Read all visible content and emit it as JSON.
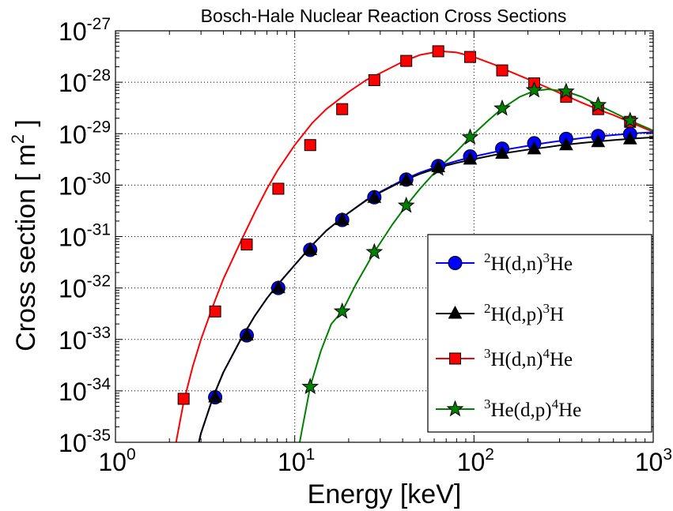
{
  "chart_data": {
    "type": "line",
    "title": "Bosch-Hale Nuclear Reaction Cross Sections",
    "xlabel": "Energy [keV]",
    "ylabel": "Cross section [ m",
    "ylabel_sup": "2",
    "ylabel_end": " ]",
    "xscale": "log",
    "yscale": "log",
    "xlim": [
      1,
      1000
    ],
    "ylim": [
      1e-35,
      1e-27
    ],
    "grid": true,
    "legend_position": "lower-right",
    "x_ticks": [
      {
        "value": 1,
        "base": "10",
        "exp": "0"
      },
      {
        "value": 10,
        "base": "10",
        "exp": "1"
      },
      {
        "value": 100,
        "base": "10",
        "exp": "2"
      },
      {
        "value": 1000,
        "base": "10",
        "exp": "3"
      }
    ],
    "y_ticks": [
      {
        "value": 1e-35,
        "base": "10",
        "exp": "-35"
      },
      {
        "value": 1e-34,
        "base": "10",
        "exp": "-34"
      },
      {
        "value": 1e-33,
        "base": "10",
        "exp": "-33"
      },
      {
        "value": 1e-32,
        "base": "10",
        "exp": "-32"
      },
      {
        "value": 1e-31,
        "base": "10",
        "exp": "-31"
      },
      {
        "value": 1e-30,
        "base": "10",
        "exp": "-30"
      },
      {
        "value": 1e-29,
        "base": "10",
        "exp": "-29"
      },
      {
        "value": 1e-28,
        "base": "10",
        "exp": "-28"
      },
      {
        "value": 1e-27,
        "base": "10",
        "exp": "-27"
      }
    ],
    "series": [
      {
        "label_parts": [
          [
            "2",
            "s"
          ],
          [
            "H(d,n)",
            "n"
          ],
          [
            "3",
            "s"
          ],
          [
            "He",
            "n"
          ]
        ],
        "color": "#0000ff",
        "marker": "circle",
        "marker_color": "#0000ff",
        "curve": [
          [
            2.5,
            1e-36
          ],
          [
            3,
            1.5e-35
          ],
          [
            3.5,
            7.5e-35
          ],
          [
            4,
            2.3e-34
          ],
          [
            5,
            1e-33
          ],
          [
            6,
            2.9e-33
          ],
          [
            7,
            6.3e-33
          ],
          [
            8,
            1.14e-32
          ],
          [
            10,
            2.8e-32
          ],
          [
            12.5,
            6.8e-32
          ],
          [
            15,
            1.3e-31
          ],
          [
            20,
            2.9e-31
          ],
          [
            25,
            5.1e-31
          ],
          [
            30,
            7.4e-31
          ],
          [
            40,
            1.25e-30
          ],
          [
            50,
            1.75e-30
          ],
          [
            65,
            2.4e-30
          ],
          [
            80,
            2.95e-30
          ],
          [
            100,
            3.6e-30
          ],
          [
            130,
            4.4e-30
          ],
          [
            150,
            4.9e-30
          ],
          [
            200,
            5.8e-30
          ],
          [
            250,
            6.6e-30
          ],
          [
            300,
            7.2e-30
          ],
          [
            400,
            8.2e-30
          ],
          [
            500,
            8.9e-30
          ],
          [
            600,
            9.4e-30
          ],
          [
            800,
            1.02e-29
          ],
          [
            1000,
            1.07e-29
          ]
        ],
        "points": [
          [
            3.6,
            7.5e-35
          ],
          [
            5.4,
            1.2e-33
          ],
          [
            8.1,
            1e-32
          ],
          [
            12.2,
            5.5e-32
          ],
          [
            18.4,
            2.1e-31
          ],
          [
            27.8,
            5.8e-31
          ],
          [
            41.9,
            1.28e-30
          ],
          [
            63.2,
            2.35e-30
          ],
          [
            95.2,
            3.6e-30
          ],
          [
            143.7,
            5.1e-30
          ],
          [
            216.7,
            6.5e-30
          ],
          [
            326.7,
            7.9e-30
          ],
          [
            492.6,
            9e-30
          ],
          [
            742.9,
            9.8e-30
          ]
        ]
      },
      {
        "label_parts": [
          [
            "2",
            "s"
          ],
          [
            "H(d,p)",
            "n"
          ],
          [
            "3",
            "s"
          ],
          [
            "H",
            "n"
          ]
        ],
        "color": "#000000",
        "marker": "triangle",
        "marker_color": "#000000",
        "curve": [
          [
            2.5,
            1e-36
          ],
          [
            3,
            1.5e-35
          ],
          [
            3.5,
            7.5e-35
          ],
          [
            4,
            2.3e-34
          ],
          [
            5,
            1e-33
          ],
          [
            6,
            2.9e-33
          ],
          [
            7,
            6.3e-33
          ],
          [
            8,
            1.14e-32
          ],
          [
            10,
            2.8e-32
          ],
          [
            12.5,
            6.8e-32
          ],
          [
            15,
            1.3e-31
          ],
          [
            20,
            2.9e-31
          ],
          [
            25,
            5e-31
          ],
          [
            30,
            7.2e-31
          ],
          [
            40,
            1.2e-30
          ],
          [
            50,
            1.65e-30
          ],
          [
            65,
            2.25e-30
          ],
          [
            80,
            2.7e-30
          ],
          [
            100,
            3.2e-30
          ],
          [
            130,
            3.85e-30
          ],
          [
            150,
            4.2e-30
          ],
          [
            200,
            4.9e-30
          ],
          [
            250,
            5.4e-30
          ],
          [
            300,
            5.9e-30
          ],
          [
            400,
            6.6e-30
          ],
          [
            500,
            7.1e-30
          ],
          [
            600,
            7.5e-30
          ],
          [
            800,
            8.1e-30
          ],
          [
            1000,
            8.5e-30
          ]
        ],
        "points": [
          [
            3.6,
            7.5e-35
          ],
          [
            5.4,
            1.2e-33
          ],
          [
            8.1,
            1e-32
          ],
          [
            12.2,
            5.5e-32
          ],
          [
            18.4,
            2.1e-31
          ],
          [
            27.8,
            5.7e-31
          ],
          [
            41.9,
            1.25e-30
          ],
          [
            63.2,
            2.25e-30
          ],
          [
            95.2,
            3.15e-30
          ],
          [
            143.7,
            4.1e-30
          ],
          [
            216.7,
            5e-30
          ],
          [
            326.7,
            6e-30
          ],
          [
            492.6,
            6.9e-30
          ],
          [
            742.9,
            7.8e-30
          ]
        ]
      },
      {
        "label_parts": [
          [
            "3",
            "s"
          ],
          [
            "H(d,n)",
            "n"
          ],
          [
            "4",
            "s"
          ],
          [
            "He",
            "n"
          ]
        ],
        "color": "#ff0000",
        "marker": "square",
        "marker_color": "#ff0000",
        "curve": [
          [
            1.9,
            1e-36
          ],
          [
            2,
            1.8e-36
          ],
          [
            2.2,
            1.2e-35
          ],
          [
            2.4,
            6e-35
          ],
          [
            2.7,
            3e-34
          ],
          [
            3,
            1e-33
          ],
          [
            3.5,
            4.5e-33
          ],
          [
            4,
            1.5e-32
          ],
          [
            5,
            8e-32
          ],
          [
            6,
            3e-31
          ],
          [
            7,
            8.5e-31
          ],
          [
            8,
            1.9e-30
          ],
          [
            10,
            6e-30
          ],
          [
            12.5,
            1.6e-29
          ],
          [
            15,
            3e-29
          ],
          [
            20,
            6.5e-29
          ],
          [
            25,
            1.1e-28
          ],
          [
            30,
            1.5e-28
          ],
          [
            40,
            2.5e-28
          ],
          [
            50,
            3.4e-28
          ],
          [
            65,
            4e-28
          ],
          [
            80,
            3.8e-28
          ],
          [
            100,
            3.1e-28
          ],
          [
            130,
            2.2e-28
          ],
          [
            150,
            1.75e-28
          ],
          [
            200,
            1.15e-28
          ],
          [
            250,
            8.2e-29
          ],
          [
            300,
            6.2e-29
          ],
          [
            400,
            4e-29
          ],
          [
            500,
            2.9e-29
          ],
          [
            600,
            2.3e-29
          ],
          [
            800,
            1.5e-29
          ],
          [
            1000,
            1.08e-29
          ]
        ],
        "points": [
          [
            2.4,
            7e-35
          ],
          [
            3.6,
            3.5e-33
          ],
          [
            5.4,
            7e-32
          ],
          [
            8.1,
            8.5e-31
          ],
          [
            12.2,
            6e-30
          ],
          [
            18.4,
            3e-29
          ],
          [
            27.8,
            1.1e-28
          ],
          [
            41.9,
            2.6e-28
          ],
          [
            63.2,
            4e-28
          ],
          [
            95.2,
            3.1e-28
          ],
          [
            143.7,
            1.7e-28
          ],
          [
            216.7,
            9.5e-29
          ],
          [
            326.7,
            5.2e-29
          ],
          [
            492.6,
            3e-29
          ],
          [
            742.9,
            1.7e-29
          ]
        ]
      },
      {
        "label_parts": [
          [
            "3",
            "s"
          ],
          [
            "He(d,p)",
            "n"
          ],
          [
            "4",
            "s"
          ],
          [
            "He",
            "n"
          ]
        ],
        "color": "#008000",
        "marker": "star",
        "marker_color": "#008000",
        "curve": [
          [
            9.3,
            1e-36
          ],
          [
            10,
            3e-36
          ],
          [
            11,
            1.8e-35
          ],
          [
            12.2,
            1.2e-34
          ],
          [
            14,
            6e-34
          ],
          [
            16,
            2e-33
          ],
          [
            18.4,
            3.5e-33
          ],
          [
            22,
            1.2e-32
          ],
          [
            27.8,
            5e-32
          ],
          [
            35,
            1.7e-31
          ],
          [
            41.9,
            4e-31
          ],
          [
            50,
            8.5e-31
          ],
          [
            63.2,
            2.1e-30
          ],
          [
            80,
            4.5e-30
          ],
          [
            95.2,
            8.5e-30
          ],
          [
            120,
            1.8e-29
          ],
          [
            143.7,
            3.1e-29
          ],
          [
            180,
            5.2e-29
          ],
          [
            216.7,
            6.8e-29
          ],
          [
            260,
            7.3e-29
          ],
          [
            326.7,
            6.6e-29
          ],
          [
            400,
            5.2e-29
          ],
          [
            492.6,
            3.6e-29
          ],
          [
            600,
            2.6e-29
          ],
          [
            742.9,
            1.8e-29
          ],
          [
            1000,
            1.15e-29
          ]
        ],
        "points": [
          [
            12.2,
            1.2e-34
          ],
          [
            18.4,
            3.5e-33
          ],
          [
            27.8,
            5e-32
          ],
          [
            41.9,
            4e-31
          ],
          [
            63.2,
            2.1e-30
          ],
          [
            95.2,
            8.5e-30
          ],
          [
            143.7,
            3.1e-29
          ],
          [
            216.7,
            7e-29
          ],
          [
            326.7,
            6.6e-29
          ],
          [
            492.6,
            3.6e-29
          ],
          [
            742.9,
            1.8e-29
          ]
        ]
      }
    ]
  }
}
